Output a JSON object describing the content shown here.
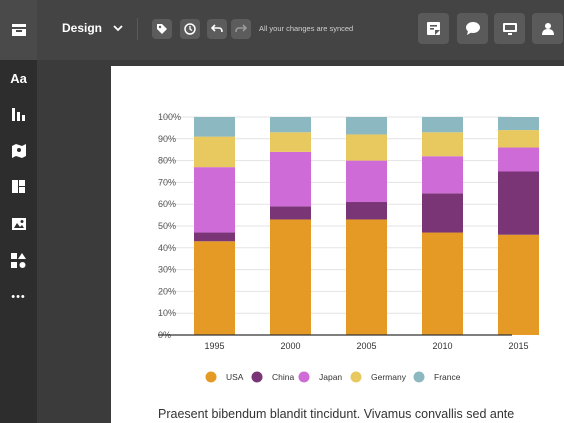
{
  "toolbar": {
    "menu_title": "Design",
    "sync_status": "All your changes are synced",
    "left_icons": [
      "tag-icon",
      "clock-icon",
      "undo-icon",
      "redo-icon"
    ],
    "right_icons": [
      "note-icon",
      "comment-icon",
      "present-icon",
      "share-icon"
    ]
  },
  "sidebar": {
    "items": [
      {
        "label": "Aa",
        "icon": "text-icon"
      },
      {
        "label": "",
        "icon": "chart-icon"
      },
      {
        "label": "",
        "icon": "map-icon"
      },
      {
        "label": "",
        "icon": "layout-icon"
      },
      {
        "label": "",
        "icon": "image-icon"
      },
      {
        "label": "",
        "icon": "shapes-icon"
      },
      {
        "label": "•••",
        "icon": "more-icon"
      }
    ]
  },
  "colors": {
    "USA": "#e59a26",
    "China": "#7a3577",
    "Japan": "#cf6bd6",
    "Germany": "#e8c95f",
    "France": "#8cb8c2"
  },
  "chart_data": {
    "type": "bar",
    "stacked": true,
    "categories": [
      "1995",
      "2000",
      "2005",
      "2010",
      "2015"
    ],
    "series": [
      {
        "name": "USA",
        "values": [
          43,
          53,
          53,
          47,
          46
        ]
      },
      {
        "name": "China",
        "values": [
          4,
          6,
          8,
          18,
          29
        ]
      },
      {
        "name": "Japan",
        "values": [
          30,
          25,
          19,
          17,
          11
        ]
      },
      {
        "name": "Germany",
        "values": [
          14,
          9,
          12,
          11,
          8
        ]
      },
      {
        "name": "France",
        "values": [
          9,
          7,
          8,
          7,
          6
        ]
      }
    ],
    "yticks": [
      "0%",
      "10%",
      "20%",
      "30%",
      "40%",
      "50%",
      "60%",
      "70%",
      "80%",
      "90%",
      "100%"
    ],
    "ylim": [
      0,
      100
    ],
    "grid": true,
    "legend": "bottom"
  },
  "body_text": "Praesent bibendum blandit tincidunt. Vivamus convallis sed ante"
}
